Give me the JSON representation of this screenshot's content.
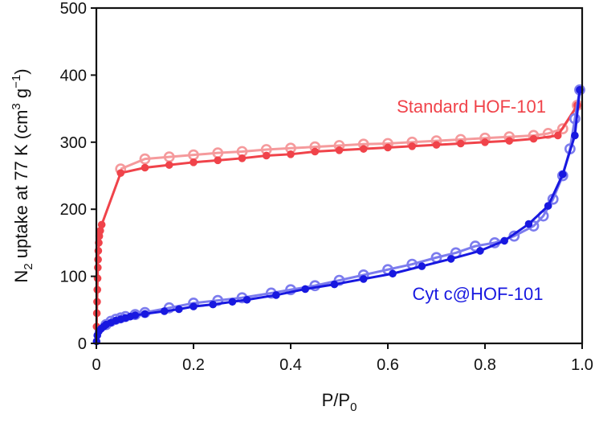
{
  "chart_data": {
    "type": "scatter",
    "title": "",
    "xlabel": {
      "main": "P/P",
      "sub": "0"
    },
    "ylabel": {
      "p1": "N",
      "sub": "2",
      "p2": " uptake at 77 K (cm",
      "sup1": "3",
      "p3": " g",
      "sup2": "−1",
      "p4": ")"
    },
    "xlim": [
      0,
      1.0
    ],
    "ylim": [
      0,
      500
    ],
    "xticks": [
      "0",
      "0.2",
      "0.4",
      "0.6",
      "0.8",
      "1.0"
    ],
    "yticks": [
      "0",
      "100",
      "200",
      "300",
      "400",
      "500"
    ],
    "grid": false,
    "series": [
      {
        "name": "Standard HOF-101",
        "color": "#f0434a",
        "light_color": "#f59a9c",
        "adsorption": [
          [
            0.0005,
            25
          ],
          [
            0.001,
            45
          ],
          [
            0.0015,
            62
          ],
          [
            0.002,
            80
          ],
          [
            0.0025,
            97
          ],
          [
            0.003,
            113
          ],
          [
            0.0035,
            125
          ],
          [
            0.004,
            138
          ],
          [
            0.005,
            150
          ],
          [
            0.006,
            160
          ],
          [
            0.008,
            168
          ],
          [
            0.011,
            177
          ],
          [
            0.05,
            254
          ],
          [
            0.1,
            262
          ],
          [
            0.15,
            266
          ],
          [
            0.2,
            270
          ],
          [
            0.25,
            273
          ],
          [
            0.3,
            276
          ],
          [
            0.35,
            280
          ],
          [
            0.4,
            282
          ],
          [
            0.45,
            286
          ],
          [
            0.5,
            288
          ],
          [
            0.55,
            290
          ],
          [
            0.6,
            292
          ],
          [
            0.65,
            294
          ],
          [
            0.7,
            296
          ],
          [
            0.75,
            298
          ],
          [
            0.8,
            300
          ],
          [
            0.85,
            302
          ],
          [
            0.9,
            305
          ],
          [
            0.95,
            310
          ],
          [
            0.99,
            355
          ]
        ],
        "desorption": [
          [
            0.99,
            355
          ],
          [
            0.96,
            320
          ],
          [
            0.93,
            313
          ],
          [
            0.9,
            310
          ],
          [
            0.85,
            308
          ],
          [
            0.8,
            306
          ],
          [
            0.75,
            304
          ],
          [
            0.7,
            302
          ],
          [
            0.65,
            300
          ],
          [
            0.6,
            298
          ],
          [
            0.55,
            297
          ],
          [
            0.5,
            295
          ],
          [
            0.45,
            293
          ],
          [
            0.4,
            291
          ],
          [
            0.35,
            289
          ],
          [
            0.3,
            286
          ],
          [
            0.25,
            284
          ],
          [
            0.2,
            281
          ],
          [
            0.15,
            278
          ],
          [
            0.1,
            275
          ],
          [
            0.05,
            260
          ]
        ]
      },
      {
        "name": "Cyt c@HOF-101",
        "color": "#1818e0",
        "light_color": "#7c7cee",
        "adsorption": [
          [
            0.0005,
            3
          ],
          [
            0.002,
            12
          ],
          [
            0.005,
            18
          ],
          [
            0.01,
            22
          ],
          [
            0.015,
            25
          ],
          [
            0.02,
            28
          ],
          [
            0.03,
            31
          ],
          [
            0.04,
            34
          ],
          [
            0.05,
            36
          ],
          [
            0.06,
            38
          ],
          [
            0.07,
            40
          ],
          [
            0.08,
            42
          ],
          [
            0.1,
            44
          ],
          [
            0.14,
            48
          ],
          [
            0.17,
            51
          ],
          [
            0.2,
            55
          ],
          [
            0.24,
            58
          ],
          [
            0.28,
            62
          ],
          [
            0.31,
            65
          ],
          [
            0.37,
            72
          ],
          [
            0.43,
            81
          ],
          [
            0.49,
            88
          ],
          [
            0.55,
            96
          ],
          [
            0.61,
            104
          ],
          [
            0.67,
            115
          ],
          [
            0.73,
            126
          ],
          [
            0.79,
            138
          ],
          [
            0.84,
            153
          ],
          [
            0.89,
            178
          ],
          [
            0.93,
            205
          ],
          [
            0.96,
            252
          ],
          [
            0.985,
            310
          ],
          [
            0.995,
            378
          ]
        ],
        "desorption": [
          [
            0.995,
            378
          ],
          [
            0.985,
            335
          ],
          [
            0.975,
            290
          ],
          [
            0.96,
            250
          ],
          [
            0.94,
            215
          ],
          [
            0.92,
            190
          ],
          [
            0.9,
            175
          ],
          [
            0.86,
            160
          ],
          [
            0.82,
            150
          ],
          [
            0.78,
            145
          ],
          [
            0.74,
            135
          ],
          [
            0.7,
            128
          ],
          [
            0.65,
            118
          ],
          [
            0.6,
            110
          ],
          [
            0.55,
            102
          ],
          [
            0.5,
            94
          ],
          [
            0.45,
            86
          ],
          [
            0.4,
            80
          ],
          [
            0.36,
            75
          ],
          [
            0.3,
            68
          ],
          [
            0.25,
            64
          ],
          [
            0.2,
            60
          ],
          [
            0.15,
            53
          ],
          [
            0.1,
            46
          ],
          [
            0.08,
            43
          ],
          [
            0.06,
            40
          ],
          [
            0.05,
            38
          ],
          [
            0.04,
            36
          ],
          [
            0.03,
            33
          ],
          [
            0.02,
            28
          ]
        ]
      }
    ]
  },
  "colors": {
    "axis": "#111111"
  }
}
